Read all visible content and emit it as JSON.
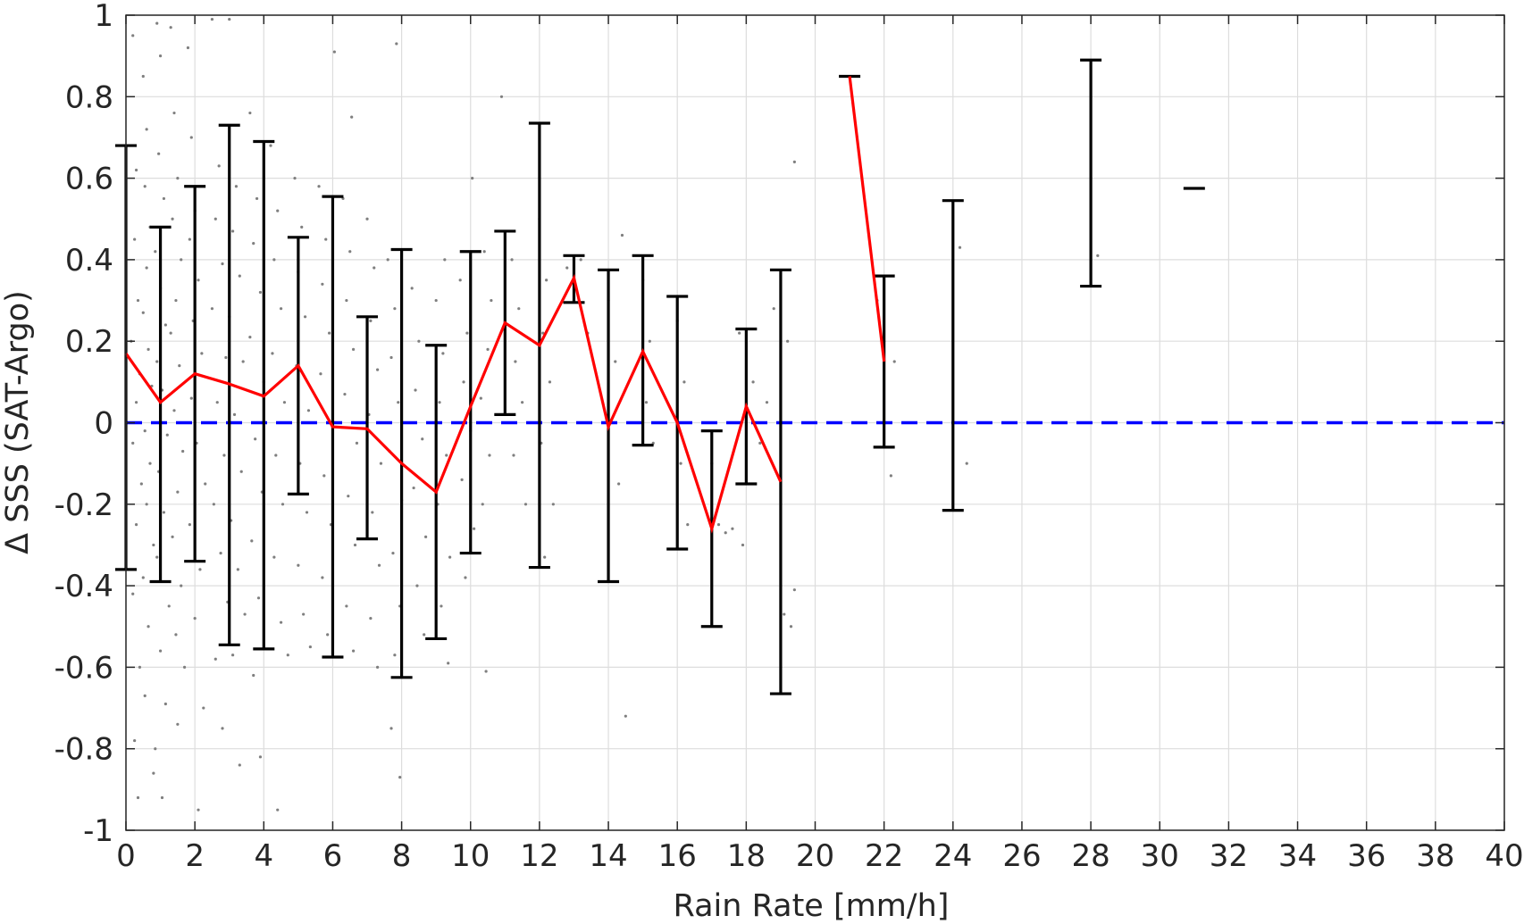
{
  "chart_data": {
    "type": "scatter",
    "title": "",
    "xlabel": "Rain Rate [mm/h]",
    "ylabel": "Δ SSS (SAT-Argo)",
    "xlim": [
      0,
      40
    ],
    "ylim": [
      -1,
      1
    ],
    "grid": true,
    "x_ticks": [
      0,
      2,
      4,
      6,
      8,
      10,
      12,
      14,
      16,
      18,
      20,
      22,
      24,
      26,
      28,
      30,
      32,
      34,
      36,
      38,
      40
    ],
    "x_tick_labels": [
      "0",
      "2",
      "4",
      "6",
      "8",
      "10",
      "12",
      "14",
      "16",
      "18",
      "20",
      "22",
      "24",
      "26",
      "28",
      "30",
      "32",
      "34",
      "36",
      "38",
      "40"
    ],
    "y_ticks": [
      1,
      0.8,
      0.6,
      0.4,
      0.2,
      0,
      -0.2,
      -0.4,
      -0.6,
      -0.8,
      -1
    ],
    "y_tick_labels": [
      "1",
      "0.8",
      "0.6",
      "0.4",
      "0.2",
      "0",
      "-0.2",
      "-0.4",
      "-0.6",
      "-0.8",
      "-1"
    ],
    "colors": {
      "scatter": "#7f7f7f",
      "mean_line": "#ff0000",
      "error_bars": "#000000",
      "reference_line": "#0000ff",
      "grid": "#dddddd",
      "axes": "#262626"
    },
    "mean_line_segments": [
      [
        [
          0,
          0.17
        ],
        [
          1,
          0.05
        ],
        [
          2,
          0.12
        ],
        [
          3,
          0.095
        ],
        [
          4,
          0.065
        ],
        [
          5,
          0.14
        ],
        [
          6,
          -0.01
        ],
        [
          7,
          -0.015
        ],
        [
          8,
          -0.1
        ],
        [
          9,
          -0.17
        ],
        [
          10,
          0.04
        ],
        [
          11,
          0.245
        ],
        [
          12,
          0.19
        ],
        [
          13,
          0.355
        ],
        [
          14,
          -0.01
        ],
        [
          15,
          0.175
        ],
        [
          16,
          0.0
        ],
        [
          17,
          -0.26
        ],
        [
          18,
          0.04
        ],
        [
          19,
          -0.145
        ]
      ],
      [
        [
          21,
          0.85
        ],
        [
          22,
          0.15
        ]
      ]
    ],
    "error_bars": [
      {
        "x": 0,
        "low": -0.36,
        "high": 0.68
      },
      {
        "x": 1,
        "low": -0.39,
        "high": 0.48
      },
      {
        "x": 2,
        "low": -0.34,
        "high": 0.58
      },
      {
        "x": 3,
        "low": -0.545,
        "high": 0.73
      },
      {
        "x": 4,
        "low": -0.555,
        "high": 0.69
      },
      {
        "x": 5,
        "low": -0.175,
        "high": 0.455
      },
      {
        "x": 6,
        "low": -0.575,
        "high": 0.555
      },
      {
        "x": 7,
        "low": -0.285,
        "high": 0.26
      },
      {
        "x": 8,
        "low": -0.625,
        "high": 0.425
      },
      {
        "x": 9,
        "low": -0.53,
        "high": 0.19
      },
      {
        "x": 10,
        "low": -0.32,
        "high": 0.42
      },
      {
        "x": 11,
        "low": 0.02,
        "high": 0.47
      },
      {
        "x": 12,
        "low": -0.355,
        "high": 0.735
      },
      {
        "x": 13,
        "low": 0.295,
        "high": 0.41
      },
      {
        "x": 14,
        "low": -0.39,
        "high": 0.375
      },
      {
        "x": 15,
        "low": -0.055,
        "high": 0.41
      },
      {
        "x": 16,
        "low": -0.31,
        "high": 0.31
      },
      {
        "x": 17,
        "low": -0.5,
        "high": -0.02
      },
      {
        "x": 18,
        "low": -0.15,
        "high": 0.23
      },
      {
        "x": 19,
        "low": -0.665,
        "high": 0.375
      },
      {
        "x": 21,
        "low": 0.85,
        "high": 0.85
      },
      {
        "x": 22,
        "low": -0.06,
        "high": 0.36
      },
      {
        "x": 24,
        "low": -0.215,
        "high": 0.545
      },
      {
        "x": 28,
        "low": 0.335,
        "high": 0.89
      },
      {
        "x": 31,
        "low": 0.575,
        "high": 0.575
      }
    ],
    "reference_line": {
      "y": 0,
      "style": "dashed"
    },
    "scatter_points": [
      [
        0.2,
        0.95
      ],
      [
        0.3,
        0.62
      ],
      [
        0.25,
        0.45
      ],
      [
        0.35,
        0.3
      ],
      [
        0.15,
        0.2
      ],
      [
        0.4,
        0.12
      ],
      [
        0.3,
        0.05
      ],
      [
        0.2,
        -0.05
      ],
      [
        0.45,
        -0.15
      ],
      [
        0.3,
        -0.25
      ],
      [
        0.2,
        -0.42
      ],
      [
        0.4,
        -0.6
      ],
      [
        0.25,
        -0.78
      ],
      [
        0.35,
        -0.92
      ],
      [
        0.5,
        0.85
      ],
      [
        0.6,
        0.72
      ],
      [
        0.55,
        0.58
      ],
      [
        0.7,
        0.48
      ],
      [
        0.6,
        0.38
      ],
      [
        0.5,
        0.27
      ],
      [
        0.65,
        0.18
      ],
      [
        0.75,
        0.09
      ],
      [
        0.55,
        -0.02
      ],
      [
        0.7,
        -0.1
      ],
      [
        0.6,
        -0.2
      ],
      [
        0.8,
        -0.3
      ],
      [
        0.5,
        -0.38
      ],
      [
        0.65,
        -0.5
      ],
      [
        0.55,
        -0.67
      ],
      [
        0.8,
        -0.86
      ],
      [
        0.9,
        0.98
      ],
      [
        1.0,
        0.9
      ],
      [
        0.95,
        0.66
      ],
      [
        1.1,
        0.55
      ],
      [
        0.85,
        0.42
      ],
      [
        1.0,
        0.33
      ],
      [
        1.15,
        0.24
      ],
      [
        0.9,
        0.15
      ],
      [
        1.05,
        0.08
      ],
      [
        1.2,
        -0.03
      ],
      [
        0.95,
        -0.12
      ],
      [
        1.1,
        -0.22
      ],
      [
        0.9,
        -0.33
      ],
      [
        1.25,
        -0.45
      ],
      [
        1.0,
        -0.56
      ],
      [
        1.15,
        -0.69
      ],
      [
        0.85,
        -0.8
      ],
      [
        1.05,
        -0.92
      ],
      [
        1.3,
        0.97
      ],
      [
        1.4,
        0.76
      ],
      [
        1.5,
        0.6
      ],
      [
        1.35,
        0.5
      ],
      [
        1.6,
        0.4
      ],
      [
        1.45,
        0.3
      ],
      [
        1.3,
        0.22
      ],
      [
        1.55,
        0.14
      ],
      [
        1.4,
        0.03
      ],
      [
        1.65,
        -0.07
      ],
      [
        1.5,
        -0.17
      ],
      [
        1.35,
        -0.28
      ],
      [
        1.6,
        -0.4
      ],
      [
        1.45,
        -0.52
      ],
      [
        1.7,
        -0.6
      ],
      [
        1.5,
        -0.74
      ],
      [
        1.8,
        0.92
      ],
      [
        1.9,
        0.7
      ],
      [
        2.0,
        0.52
      ],
      [
        1.85,
        0.45
      ],
      [
        2.1,
        0.35
      ],
      [
        1.95,
        0.25
      ],
      [
        2.2,
        0.17
      ],
      [
        1.9,
        0.06
      ],
      [
        2.05,
        -0.05
      ],
      [
        2.3,
        -0.15
      ],
      [
        1.85,
        -0.25
      ],
      [
        2.15,
        -0.36
      ],
      [
        2.0,
        -0.48
      ],
      [
        2.25,
        -0.7
      ],
      [
        2.1,
        -0.95
      ],
      [
        2.5,
        0.99
      ],
      [
        2.7,
        0.63
      ],
      [
        2.6,
        0.5
      ],
      [
        2.8,
        0.39
      ],
      [
        2.5,
        0.28
      ],
      [
        2.9,
        0.16
      ],
      [
        2.65,
        0.05
      ],
      [
        2.85,
        -0.08
      ],
      [
        2.55,
        -0.2
      ],
      [
        2.75,
        -0.32
      ],
      [
        2.95,
        -0.44
      ],
      [
        2.6,
        -0.58
      ],
      [
        2.8,
        -0.75
      ],
      [
        3.0,
        0.99
      ],
      [
        3.2,
        0.58
      ],
      [
        3.1,
        0.47
      ],
      [
        3.3,
        0.36
      ],
      [
        3.0,
        0.26
      ],
      [
        3.4,
        0.15
      ],
      [
        3.15,
        0.02
      ],
      [
        3.35,
        -0.12
      ],
      [
        3.05,
        -0.24
      ],
      [
        3.25,
        -0.36
      ],
      [
        3.45,
        -0.47
      ],
      [
        3.1,
        -0.57
      ],
      [
        3.3,
        -0.84
      ],
      [
        3.6,
        0.76
      ],
      [
        3.8,
        0.55
      ],
      [
        3.7,
        0.44
      ],
      [
        3.9,
        0.32
      ],
      [
        3.6,
        0.21
      ],
      [
        4.0,
        0.1
      ],
      [
        3.75,
        -0.04
      ],
      [
        3.95,
        -0.17
      ],
      [
        3.65,
        -0.29
      ],
      [
        3.85,
        -0.43
      ],
      [
        3.7,
        -0.62
      ],
      [
        3.9,
        -0.82
      ],
      [
        4.2,
        0.68
      ],
      [
        4.4,
        0.52
      ],
      [
        4.3,
        0.4
      ],
      [
        4.5,
        0.28
      ],
      [
        4.25,
        0.17
      ],
      [
        4.6,
        0.05
      ],
      [
        4.35,
        -0.08
      ],
      [
        4.55,
        -0.2
      ],
      [
        4.3,
        -0.33
      ],
      [
        4.5,
        -0.49
      ],
      [
        4.7,
        -0.57
      ],
      [
        4.4,
        -0.95
      ],
      [
        4.9,
        0.6
      ],
      [
        5.1,
        0.48
      ],
      [
        5.0,
        0.37
      ],
      [
        5.2,
        0.26
      ],
      [
        4.95,
        0.14
      ],
      [
        5.3,
        0.03
      ],
      [
        5.05,
        -0.1
      ],
      [
        5.25,
        -0.22
      ],
      [
        5.0,
        -0.35
      ],
      [
        5.15,
        -0.47
      ],
      [
        5.35,
        -0.55
      ],
      [
        5.6,
        0.58
      ],
      [
        5.8,
        0.45
      ],
      [
        5.7,
        0.34
      ],
      [
        5.9,
        0.22
      ],
      [
        5.65,
        0.12
      ],
      [
        6.0,
        0.0
      ],
      [
        5.75,
        -0.13
      ],
      [
        5.95,
        -0.25
      ],
      [
        5.7,
        -0.38
      ],
      [
        5.85,
        -0.52
      ],
      [
        6.05,
        0.91
      ],
      [
        6.3,
        0.55
      ],
      [
        6.5,
        0.42
      ],
      [
        6.4,
        0.3
      ],
      [
        6.6,
        0.18
      ],
      [
        6.35,
        0.07
      ],
      [
        6.7,
        -0.05
      ],
      [
        6.45,
        -0.18
      ],
      [
        6.65,
        -0.3
      ],
      [
        6.4,
        -0.45
      ],
      [
        6.6,
        -0.56
      ],
      [
        6.55,
        0.75
      ],
      [
        7.0,
        0.5
      ],
      [
        7.2,
        0.38
      ],
      [
        7.1,
        0.25
      ],
      [
        7.3,
        0.13
      ],
      [
        7.05,
        0.02
      ],
      [
        7.4,
        -0.1
      ],
      [
        7.15,
        -0.22
      ],
      [
        7.35,
        -0.35
      ],
      [
        7.1,
        -0.48
      ],
      [
        7.3,
        -0.6
      ],
      [
        7.6,
        0.4
      ],
      [
        7.8,
        0.28
      ],
      [
        7.7,
        0.16
      ],
      [
        7.9,
        0.05
      ],
      [
        7.65,
        -0.07
      ],
      [
        8.0,
        -0.19
      ],
      [
        7.75,
        -0.32
      ],
      [
        7.95,
        -0.45
      ],
      [
        7.8,
        -0.57
      ],
      [
        7.7,
        -0.75
      ],
      [
        7.95,
        -0.87
      ],
      [
        7.85,
        0.93
      ],
      [
        8.3,
        0.33
      ],
      [
        8.5,
        0.2
      ],
      [
        8.4,
        0.08
      ],
      [
        8.6,
        -0.04
      ],
      [
        8.35,
        -0.16
      ],
      [
        8.7,
        -0.28
      ],
      [
        8.45,
        -0.4
      ],
      [
        8.65,
        -0.52
      ],
      [
        9.0,
        0.3
      ],
      [
        9.2,
        0.17
      ],
      [
        9.1,
        0.05
      ],
      [
        9.3,
        -0.08
      ],
      [
        9.05,
        -0.2
      ],
      [
        9.4,
        -0.33
      ],
      [
        9.15,
        -0.45
      ],
      [
        9.35,
        -0.59
      ],
      [
        9.25,
        0.4
      ],
      [
        9.7,
        0.35
      ],
      [
        9.9,
        0.22
      ],
      [
        9.8,
        0.1
      ],
      [
        10.0,
        -0.02
      ],
      [
        9.75,
        -0.14
      ],
      [
        10.1,
        -0.26
      ],
      [
        9.85,
        -0.38
      ],
      [
        10.05,
        0.6
      ],
      [
        10.4,
        0.42
      ],
      [
        10.6,
        0.3
      ],
      [
        10.5,
        0.18
      ],
      [
        10.3,
        0.06
      ],
      [
        10.55,
        -0.08
      ],
      [
        10.35,
        -0.2
      ],
      [
        10.45,
        -0.61
      ],
      [
        10.9,
        0.8
      ],
      [
        11.2,
        0.4
      ],
      [
        11.4,
        0.28
      ],
      [
        11.3,
        0.15
      ],
      [
        11.5,
        0.05
      ],
      [
        11.25,
        -0.08
      ],
      [
        11.6,
        -0.2
      ],
      [
        12.0,
        0.5
      ],
      [
        12.2,
        0.35
      ],
      [
        12.1,
        0.22
      ],
      [
        12.3,
        0.1
      ],
      [
        12.05,
        -0.05
      ],
      [
        12.4,
        -0.2
      ],
      [
        12.15,
        -0.33
      ],
      [
        12.8,
        0.38
      ],
      [
        13.0,
        0.3
      ],
      [
        13.2,
        0.4
      ],
      [
        13.4,
        0.22
      ],
      [
        14.0,
        0.3
      ],
      [
        14.2,
        0.15
      ],
      [
        14.1,
        0.0
      ],
      [
        14.3,
        -0.15
      ],
      [
        14.4,
        0.46
      ],
      [
        14.5,
        -0.72
      ],
      [
        15.0,
        0.35
      ],
      [
        15.2,
        0.2
      ],
      [
        15.1,
        0.05
      ],
      [
        15.3,
        -0.05
      ],
      [
        16.0,
        0.25
      ],
      [
        16.2,
        0.1
      ],
      [
        16.1,
        -0.1
      ],
      [
        16.3,
        -0.25
      ],
      [
        17.0,
        -0.1
      ],
      [
        17.2,
        -0.25
      ],
      [
        17.4,
        -0.27
      ],
      [
        17.6,
        -0.26
      ],
      [
        17.8,
        0.22
      ],
      [
        17.9,
        -0.3
      ],
      [
        18.2,
        0.1
      ],
      [
        18.4,
        -0.05
      ],
      [
        18.6,
        0.05
      ],
      [
        18.8,
        0.28
      ],
      [
        19.2,
        0.2
      ],
      [
        19.4,
        -0.41
      ],
      [
        19.1,
        -0.47
      ],
      [
        19.3,
        -0.5
      ],
      [
        19.4,
        0.64
      ],
      [
        21.8,
        0.3
      ],
      [
        22.0,
        0.2
      ],
      [
        22.3,
        0.15
      ],
      [
        22.2,
        -0.13
      ],
      [
        24.2,
        0.43
      ],
      [
        24.4,
        -0.1
      ],
      [
        28.2,
        0.41
      ]
    ]
  }
}
